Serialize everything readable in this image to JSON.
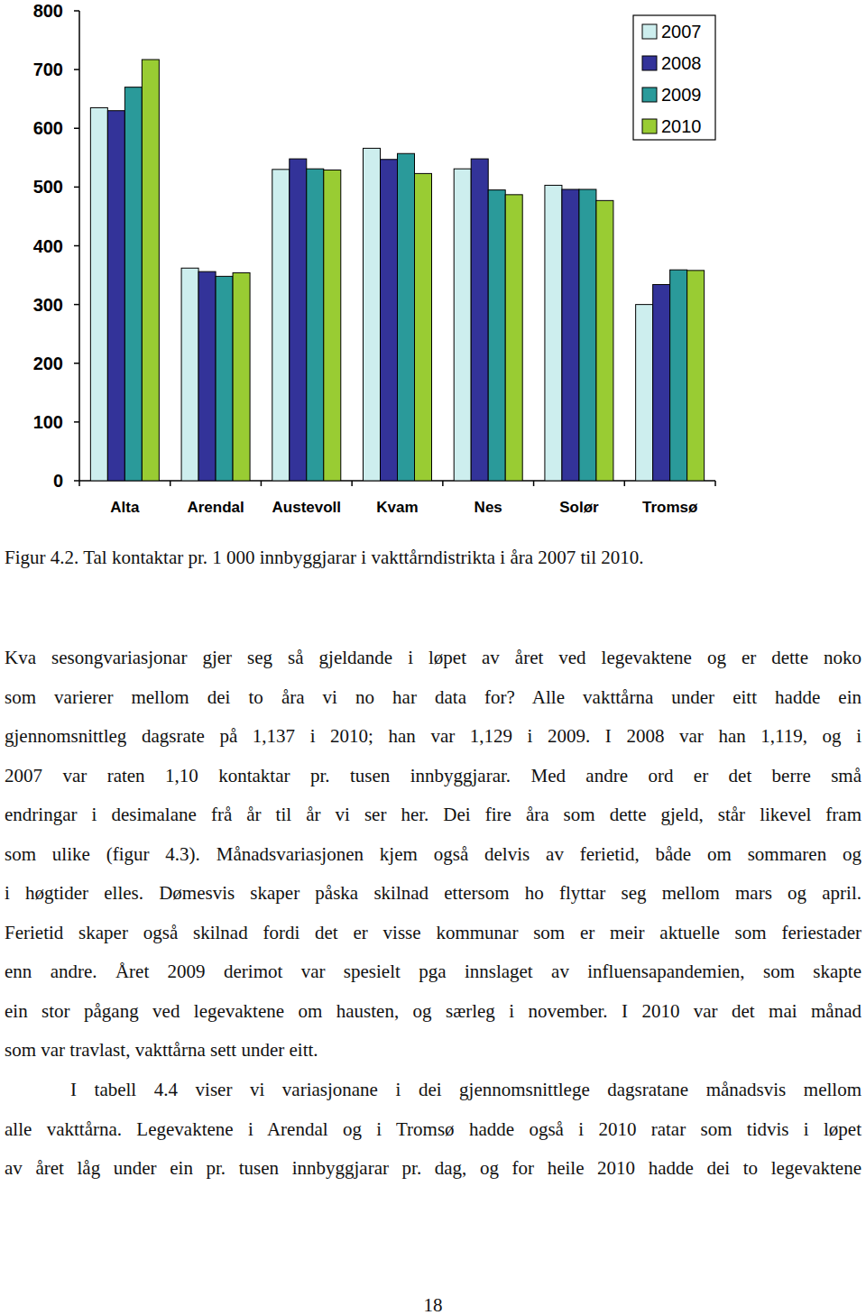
{
  "chart_data": {
    "type": "bar",
    "categories": [
      "Alta",
      "Arendal",
      "Austevoll",
      "Kvam",
      "Nes",
      "Solør",
      "Tromsø"
    ],
    "series": [
      {
        "name": "2007",
        "color": "#cdeeee",
        "values": [
          635,
          362,
          530,
          566,
          531,
          503,
          300
        ]
      },
      {
        "name": "2008",
        "color": "#333399",
        "values": [
          630,
          356,
          548,
          547,
          548,
          496,
          334
        ]
      },
      {
        "name": "2009",
        "color": "#2a9a9a",
        "values": [
          670,
          348,
          531,
          557,
          495,
          496,
          359
        ]
      },
      {
        "name": "2010",
        "color": "#99cc33",
        "values": [
          717,
          354,
          529,
          523,
          487,
          477,
          358
        ]
      }
    ],
    "ylim": [
      0,
      800
    ],
    "yticks": [
      0,
      100,
      200,
      300,
      400,
      500,
      600,
      700,
      800
    ],
    "grid": false,
    "legend": "top-right"
  },
  "text": {
    "caption": "Figur 4.2. Tal kontaktar pr. 1 000 innbyggjarar i vakttårndistrikta i åra 2007 til 2010.",
    "paragraphs": [
      {
        "lines": [
          "Kva sesongvariasjonar gjer seg så gjeldande i løpet av året ved legevaktene og er dette noko",
          "som varierer mellom dei to åra vi no har data for? Alle vakttårna under eitt hadde ein",
          "gjennomsnittleg dagsrate på 1,137 i 2010; han var 1,129 i 2009. I 2008 var han 1,119, og i",
          "2007 var raten 1,10 kontaktar pr. tusen innbyggjarar. Med andre ord er det berre små",
          "endringar i desimalane frå år til år vi ser her. Dei fire åra som dette gjeld, står likevel fram",
          "som ulike (figur 4.3). Månadsvariasjonen kjem også delvis av ferietid, både om sommaren og",
          "i høgtider elles. Dømesvis skaper påska skilnad ettersom ho flyttar seg mellom mars og april.",
          "Ferietid skaper også skilnad fordi det er visse kommunar som er meir aktuelle som feriestader",
          "enn andre. Året 2009 derimot var spesielt pga innslaget av influensapandemien, som skapte",
          "ein stor pågang ved legevaktene om hausten, og særleg i november. I 2010 var det mai månad",
          "som var travlast, vakttårna sett under eitt."
        ]
      },
      {
        "lines": [
          "I tabell 4.4 viser vi variasjonane i dei gjennomsnittlege dagsratane månadsvis mellom",
          "alle vakttårna. Legevaktene i Arendal og i Tromsø hadde også i 2010 ratar som tidvis i løpet",
          "av året låg under ein pr. tusen innbyggjarar pr. dag, og for heile 2010 hadde dei to legevaktene"
        ]
      }
    ],
    "page_number": "18"
  }
}
